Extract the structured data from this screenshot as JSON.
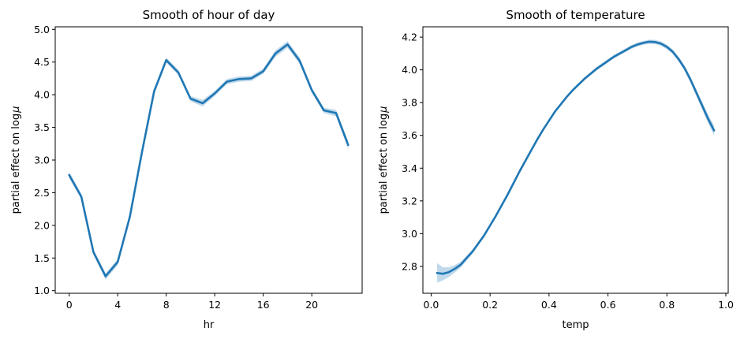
{
  "chart_data": [
    {
      "type": "line",
      "title": "Smooth of hour of day",
      "xlabel": "hr",
      "ylabel_prefix": "partial effect on log",
      "ylabel_symbol": "μ",
      "xlim": [
        -1.15,
        24.15
      ],
      "ylim": [
        0.96,
        5.04
      ],
      "xticks": [
        0,
        4,
        8,
        12,
        16,
        20
      ],
      "yticks": [
        1.0,
        1.5,
        2.0,
        2.5,
        3.0,
        3.5,
        4.0,
        4.5,
        5.0
      ],
      "ytick_labels": [
        "1.0",
        "1.5",
        "2.0",
        "2.5",
        "3.0",
        "3.5",
        "4.0",
        "4.5",
        "5.0"
      ],
      "line_color": "#1f77b4",
      "band_color": "#1f77b4",
      "x": [
        0,
        1,
        2,
        3,
        4,
        5,
        6,
        7,
        8,
        9,
        10,
        11,
        12,
        13,
        14,
        15,
        16,
        17,
        18,
        19,
        20,
        21,
        22,
        23
      ],
      "y": [
        2.77,
        2.44,
        1.59,
        1.22,
        1.44,
        2.13,
        3.12,
        4.05,
        4.53,
        4.34,
        3.94,
        3.87,
        4.02,
        4.2,
        4.24,
        4.25,
        4.36,
        4.63,
        4.77,
        4.52,
        4.07,
        3.76,
        3.72,
        3.23
      ],
      "y_lower": [
        2.72,
        2.4,
        1.55,
        1.17,
        1.39,
        2.09,
        3.08,
        4.01,
        4.49,
        4.3,
        3.9,
        3.82,
        3.98,
        4.16,
        4.2,
        4.21,
        4.32,
        4.58,
        4.72,
        4.47,
        4.03,
        3.72,
        3.67,
        3.17
      ],
      "y_upper": [
        2.82,
        2.48,
        1.63,
        1.27,
        1.48,
        2.17,
        3.16,
        4.09,
        4.57,
        4.38,
        3.98,
        3.92,
        4.06,
        4.24,
        4.28,
        4.29,
        4.4,
        4.68,
        4.82,
        4.57,
        4.11,
        3.8,
        3.77,
        3.29
      ]
    },
    {
      "type": "line",
      "title": "Smooth of temperature",
      "xlabel": "temp",
      "ylabel_prefix": "partial effect on log",
      "ylabel_symbol": "μ",
      "xlim": [
        -0.028,
        1.008
      ],
      "ylim": [
        2.636,
        4.263
      ],
      "xticks": [
        0.0,
        0.2,
        0.4,
        0.6,
        0.8,
        1.0
      ],
      "xtick_labels": [
        "0.0",
        "0.2",
        "0.4",
        "0.6",
        "0.8",
        "1.0"
      ],
      "yticks": [
        2.8,
        3.0,
        3.2,
        3.4,
        3.6,
        3.8,
        4.0,
        4.2
      ],
      "ytick_labels": [
        "2.8",
        "3.0",
        "3.2",
        "3.4",
        "3.6",
        "3.8",
        "4.0",
        "4.2"
      ],
      "line_color": "#1f77b4",
      "band_color": "#1f77b4",
      "x": [
        0.02,
        0.04,
        0.06,
        0.08,
        0.1,
        0.12,
        0.14,
        0.16,
        0.18,
        0.2,
        0.22,
        0.24,
        0.26,
        0.28,
        0.3,
        0.32,
        0.34,
        0.36,
        0.38,
        0.4,
        0.42,
        0.44,
        0.46,
        0.48,
        0.5,
        0.52,
        0.54,
        0.56,
        0.58,
        0.6,
        0.62,
        0.64,
        0.66,
        0.68,
        0.7,
        0.72,
        0.74,
        0.76,
        0.78,
        0.8,
        0.82,
        0.84,
        0.86,
        0.88,
        0.9,
        0.92,
        0.94,
        0.96
      ],
      "y": [
        2.76,
        2.755,
        2.765,
        2.785,
        2.81,
        2.85,
        2.89,
        2.94,
        2.99,
        3.05,
        3.11,
        3.175,
        3.24,
        3.31,
        3.38,
        3.445,
        3.51,
        3.575,
        3.635,
        3.69,
        3.745,
        3.79,
        3.835,
        3.875,
        3.91,
        3.945,
        3.975,
        4.005,
        4.03,
        4.055,
        4.08,
        4.1,
        4.12,
        4.14,
        4.155,
        4.165,
        4.172,
        4.17,
        4.16,
        4.14,
        4.11,
        4.065,
        4.01,
        3.94,
        3.86,
        3.78,
        3.7,
        3.63
      ],
      "y_lower": [
        2.7,
        2.715,
        2.735,
        2.762,
        2.792,
        2.835,
        2.877,
        2.928,
        2.979,
        3.04,
        3.1,
        3.166,
        3.232,
        3.302,
        3.372,
        3.437,
        3.502,
        3.567,
        3.627,
        3.682,
        3.737,
        3.782,
        3.826,
        3.866,
        3.9,
        3.935,
        3.965,
        3.994,
        4.019,
        4.044,
        4.069,
        4.089,
        4.109,
        4.128,
        4.143,
        4.153,
        4.159,
        4.157,
        4.146,
        4.126,
        4.096,
        4.05,
        3.994,
        3.922,
        3.84,
        3.757,
        3.674,
        3.6
      ],
      "y_upper": [
        2.82,
        2.795,
        2.795,
        2.808,
        2.828,
        2.865,
        2.903,
        2.952,
        3.001,
        3.06,
        3.12,
        3.184,
        3.248,
        3.318,
        3.388,
        3.453,
        3.518,
        3.583,
        3.643,
        3.698,
        3.753,
        3.798,
        3.844,
        3.884,
        3.92,
        3.955,
        3.985,
        4.016,
        4.041,
        4.066,
        4.091,
        4.111,
        4.131,
        4.152,
        4.167,
        4.177,
        4.185,
        4.183,
        4.174,
        4.154,
        4.124,
        4.08,
        4.026,
        3.958,
        3.88,
        3.803,
        3.726,
        3.66
      ]
    }
  ]
}
